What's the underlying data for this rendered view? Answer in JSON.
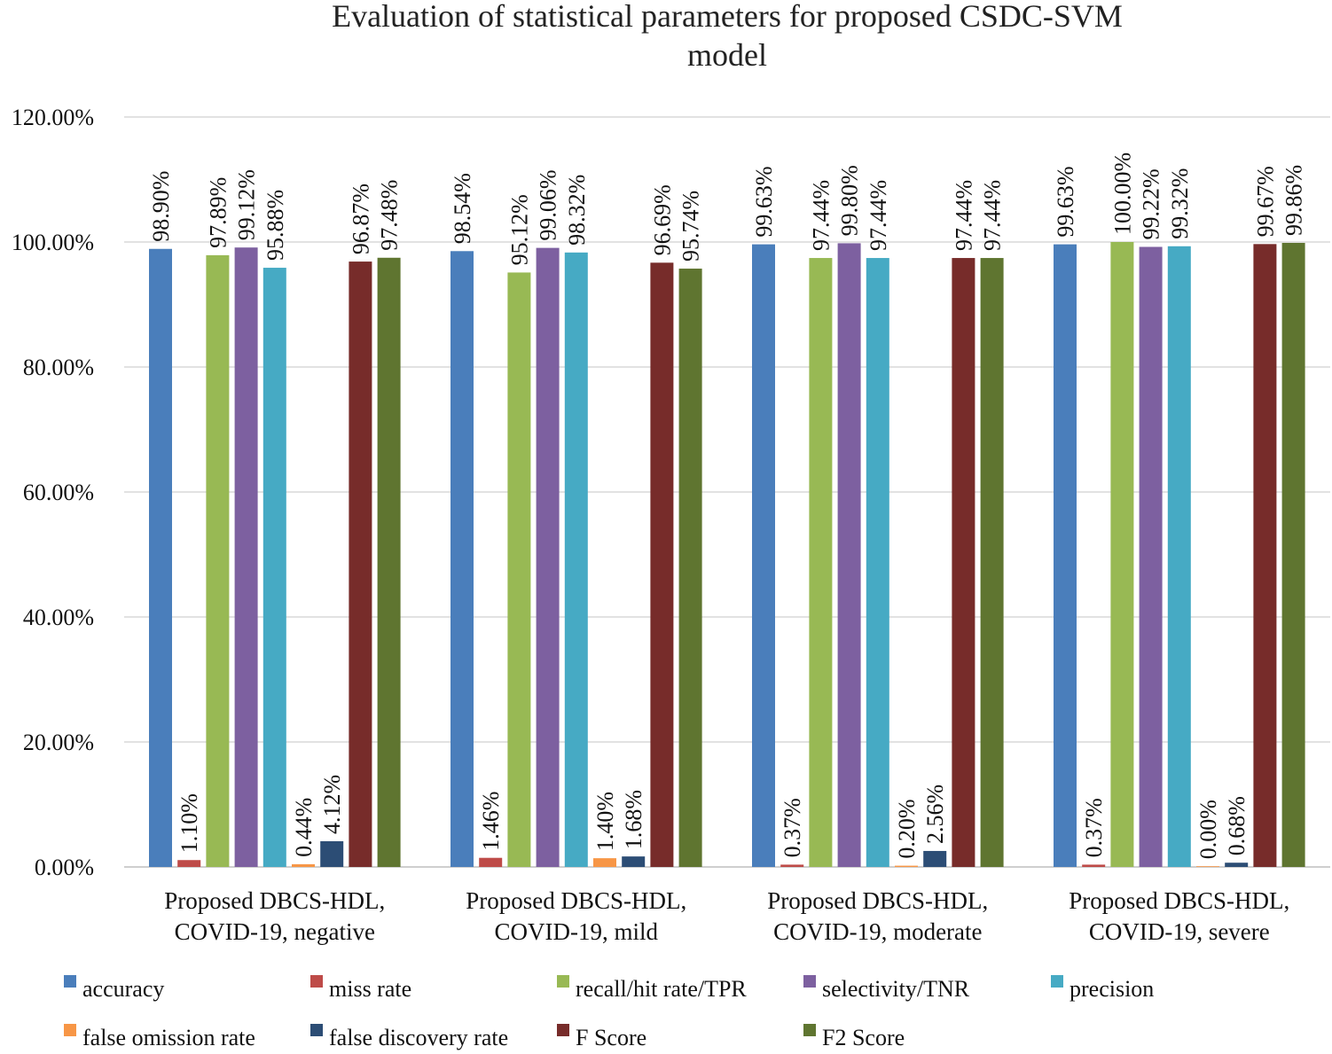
{
  "chart_data": {
    "type": "bar",
    "title_lines": [
      "Evaluation of statistical parameters for proposed CSDC-SVM",
      "model"
    ],
    "xlabel": "",
    "ylabel": "",
    "ylim": [
      0,
      120
    ],
    "yticks": [
      "0.00%",
      "20.00%",
      "40.00%",
      "60.00%",
      "80.00%",
      "100.00%",
      "120.00%"
    ],
    "grid": true,
    "legend_position": "bottom",
    "categories": [
      [
        "Proposed DBCS-HDL,",
        "COVID-19, negative"
      ],
      [
        "Proposed DBCS-HDL,",
        "COVID-19, mild"
      ],
      [
        "Proposed DBCS-HDL,",
        "COVID-19, moderate"
      ],
      [
        "Proposed DBCS-HDL,",
        "COVID-19, severe"
      ]
    ],
    "series": [
      {
        "name": "accuracy",
        "color": "#4a7ebb",
        "values": [
          98.9,
          98.54,
          99.63,
          99.63
        ],
        "labels": [
          "98.90%",
          "98.54%",
          "99.63%",
          "99.63%"
        ]
      },
      {
        "name": "miss rate",
        "color": "#be4b48",
        "values": [
          1.1,
          1.46,
          0.37,
          0.37
        ],
        "labels": [
          "1.10%",
          "1.46%",
          "0.37%",
          "0.37%"
        ]
      },
      {
        "name": "recall/hit rate/TPR",
        "color": "#98b954",
        "values": [
          97.89,
          95.12,
          97.44,
          100.0
        ],
        "labels": [
          "97.89%",
          "95.12%",
          "97.44%",
          "100.00%"
        ]
      },
      {
        "name": "selectivity/TNR",
        "color": "#7d60a0",
        "values": [
          99.12,
          99.06,
          99.8,
          99.22
        ],
        "labels": [
          "99.12%",
          "99.06%",
          "99.80%",
          "99.22%"
        ]
      },
      {
        "name": "precision",
        "color": "#46aac4",
        "values": [
          95.88,
          98.32,
          97.44,
          99.32
        ],
        "labels": [
          "95.88%",
          "98.32%",
          "97.44%",
          "99.32%"
        ]
      },
      {
        "name": "false omission rate",
        "color": "#f79646",
        "values": [
          0.44,
          1.4,
          0.2,
          0.0
        ],
        "labels": [
          "0.44%",
          "1.40%",
          "0.20%",
          "0.00%"
        ]
      },
      {
        "name": "false discovery rate",
        "color": "#2c4d75",
        "values": [
          4.12,
          1.68,
          2.56,
          0.68
        ],
        "labels": [
          "4.12%",
          "1.68%",
          "2.56%",
          "0.68%"
        ]
      },
      {
        "name": "F  Score",
        "color": "#772c2a",
        "values": [
          96.87,
          96.69,
          97.44,
          99.67
        ],
        "labels": [
          "96.87%",
          "96.69%",
          "97.44%",
          "99.67%"
        ]
      },
      {
        "name": "F2 Score",
        "color": "#5f7530",
        "values": [
          97.48,
          95.74,
          97.44,
          99.86
        ],
        "labels": [
          "97.48%",
          "95.74%",
          "97.44%",
          "99.86%"
        ]
      }
    ]
  }
}
